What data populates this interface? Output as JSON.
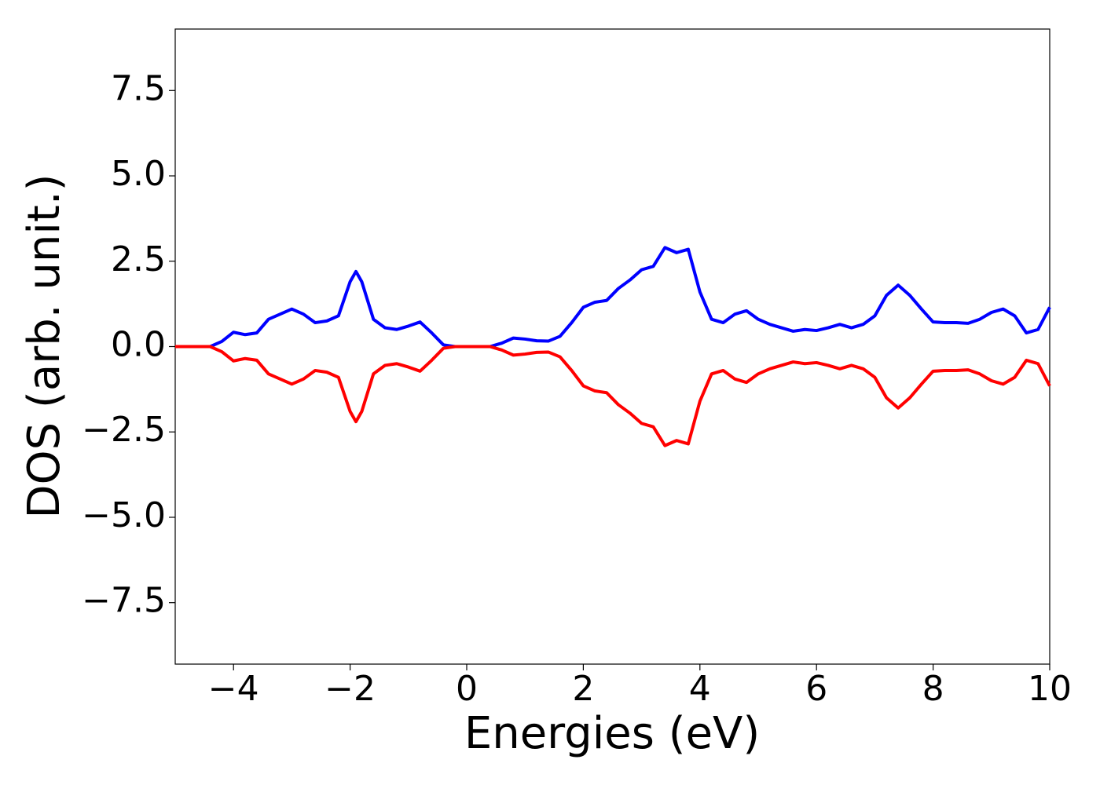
{
  "chart_data": {
    "type": "line",
    "xlabel": "Energies (eV)",
    "ylabel": "DOS (arb. unit.)",
    "x": [
      -5,
      -4.8,
      -4.6,
      -4.4,
      -4.2,
      -4,
      -3.8,
      -3.6,
      -3.4,
      -3.2,
      -3,
      -2.8,
      -2.6,
      -2.4,
      -2.2,
      -2,
      -1.9,
      -1.8,
      -1.6,
      -1.4,
      -1.2,
      -1,
      -0.8,
      -0.6,
      -0.4,
      -0.2,
      0,
      0.2,
      0.4,
      0.6,
      0.8,
      1,
      1.2,
      1.4,
      1.6,
      1.8,
      2,
      2.2,
      2.4,
      2.6,
      2.8,
      3,
      3.2,
      3.4,
      3.6,
      3.8,
      4,
      4.2,
      4.4,
      4.6,
      4.8,
      5,
      5.2,
      5.4,
      5.6,
      5.8,
      6,
      6.2,
      6.4,
      6.6,
      6.8,
      7,
      7.2,
      7.4,
      7.6,
      7.8,
      8,
      8.2,
      8.4,
      8.6,
      8.8,
      9,
      9.2,
      9.4,
      9.6,
      9.8,
      10
    ],
    "series": [
      {
        "color": "#0000ff",
        "values": [
          0,
          0,
          0,
          0,
          0.15,
          0.42,
          0.35,
          0.4,
          0.8,
          0.95,
          1.1,
          0.95,
          0.7,
          0.75,
          0.9,
          1.9,
          2.2,
          1.9,
          0.8,
          0.55,
          0.5,
          0.6,
          0.72,
          0.4,
          0.05,
          0,
          0,
          0,
          0,
          0.1,
          0.25,
          0.22,
          0.17,
          0.16,
          0.3,
          0.7,
          1.15,
          1.3,
          1.35,
          1.7,
          1.95,
          2.25,
          2.35,
          2.9,
          2.75,
          2.85,
          1.6,
          0.8,
          0.7,
          0.95,
          1.05,
          0.8,
          0.65,
          0.55,
          0.45,
          0.5,
          0.47,
          0.55,
          0.65,
          0.55,
          0.65,
          0.9,
          1.5,
          1.8,
          1.5,
          1.1,
          0.72,
          0.7,
          0.7,
          0.68,
          0.8,
          1.0,
          1.1,
          0.9,
          0.4,
          0.5,
          1.15
        ]
      },
      {
        "color": "#ff0000",
        "values": [
          0,
          0,
          0,
          0,
          -0.15,
          -0.42,
          -0.35,
          -0.4,
          -0.8,
          -0.95,
          -1.1,
          -0.95,
          -0.7,
          -0.75,
          -0.9,
          -1.9,
          -2.2,
          -1.9,
          -0.8,
          -0.55,
          -0.5,
          -0.6,
          -0.72,
          -0.4,
          -0.05,
          0,
          0,
          0,
          0,
          -0.1,
          -0.25,
          -0.22,
          -0.17,
          -0.16,
          -0.3,
          -0.7,
          -1.15,
          -1.3,
          -1.35,
          -1.7,
          -1.95,
          -2.25,
          -2.35,
          -2.9,
          -2.75,
          -2.85,
          -1.6,
          -0.8,
          -0.7,
          -0.95,
          -1.05,
          -0.8,
          -0.65,
          -0.55,
          -0.45,
          -0.5,
          -0.47,
          -0.55,
          -0.65,
          -0.55,
          -0.65,
          -0.9,
          -1.5,
          -1.8,
          -1.5,
          -1.1,
          -0.72,
          -0.7,
          -0.7,
          -0.68,
          -0.8,
          -1.0,
          -1.1,
          -0.9,
          -0.4,
          -0.5,
          -1.15
        ]
      }
    ],
    "xlim": [
      -5,
      10
    ],
    "xticks": [
      {
        "value": -4,
        "label": "−4"
      },
      {
        "value": -2,
        "label": "−2"
      },
      0,
      2,
      4,
      6,
      8,
      10
    ],
    "ylim": [
      -9.3,
      9.3
    ],
    "yticks": [
      {
        "value": -7.5,
        "label": "−7.5"
      },
      {
        "value": -5,
        "label": "−5.0"
      },
      {
        "value": -2.5,
        "label": "−2.5"
      },
      {
        "value": 0,
        "label": "0.0"
      },
      2.5,
      {
        "value": 5,
        "label": "5.0"
      },
      7.5
    ],
    "grid": false
  }
}
